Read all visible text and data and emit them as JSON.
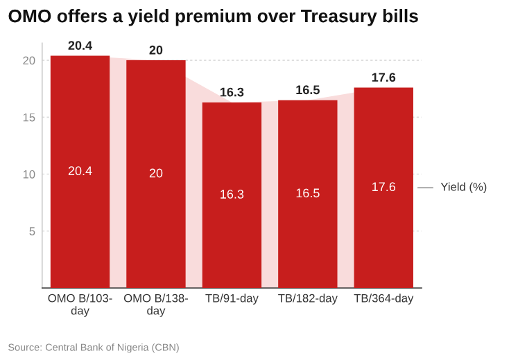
{
  "chart_data": {
    "type": "bar",
    "title": "OMO offers a yield premium over Treasury bills",
    "categories": [
      "OMO B/103-day",
      "OMO B/138-day",
      "TB/91-day",
      "TB/182-day",
      "TB/364-day"
    ],
    "series": [
      {
        "type": "area",
        "name": "Yield (%)",
        "color": "#f9dcdc",
        "values": [
          20.4,
          20,
          16.3,
          16.5,
          17.6
        ],
        "value_labels": [
          "20.4",
          "20",
          "16.3",
          "16.5",
          "17.6"
        ]
      },
      {
        "color": "#c71e1d",
        "values": [
          20.4,
          20,
          16.3,
          16.5,
          17.6
        ],
        "value_labels": [
          "20.4",
          "20",
          "16.3",
          "16.5",
          "17.6"
        ]
      }
    ],
    "ylim": [
      0,
      21.5
    ],
    "yticks": [
      5,
      10,
      15,
      20
    ],
    "grid": "y",
    "legend": false,
    "annotations": [
      "Source: Central Bank of Nigeria (CBN)"
    ]
  }
}
